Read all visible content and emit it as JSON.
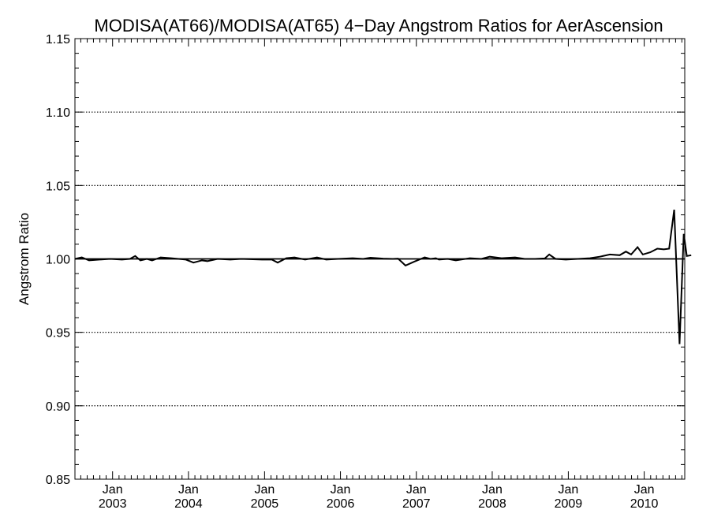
{
  "chart_data": {
    "type": "line",
    "title": "MODISA(AT66)/MODISA(AT65) 4−Day Angstrom Ratios for AerAscension",
    "ylabel": "Angstrom Ratio",
    "xlabel": "",
    "ylim": [
      0.85,
      1.15
    ],
    "xlim": [
      "2002-07-04",
      "2010-07-15"
    ],
    "y_ticks": [
      0.85,
      0.9,
      0.95,
      1.0,
      1.05,
      1.1,
      1.15
    ],
    "y_tick_labels": [
      "0.85",
      "0.90",
      "0.95",
      "1.00",
      "1.05",
      "1.10",
      "1.15"
    ],
    "x_ticks": [
      {
        "month": "Jan",
        "year": "2003",
        "date": "2003-01-01"
      },
      {
        "month": "Jan",
        "year": "2004",
        "date": "2004-01-01"
      },
      {
        "month": "Jan",
        "year": "2005",
        "date": "2005-01-01"
      },
      {
        "month": "Jan",
        "year": "2006",
        "date": "2006-01-01"
      },
      {
        "month": "Jan",
        "year": "2007",
        "date": "2007-01-01"
      },
      {
        "month": "Jan",
        "year": "2008",
        "date": "2008-01-01"
      },
      {
        "month": "Jan",
        "year": "2009",
        "date": "2009-01-01"
      },
      {
        "month": "Jan",
        "year": "2010",
        "date": "2010-01-01"
      }
    ],
    "grid": {
      "y": true,
      "x": false,
      "style": "dotted"
    },
    "reference_line": 1.0,
    "series": [
      {
        "points": [
          [
            "2002-07-04",
            1.0
          ],
          [
            "2002-08-06",
            1.001
          ],
          [
            "2002-09-10",
            0.999
          ],
          [
            "2002-10-30",
            0.9995
          ],
          [
            "2002-12-20",
            1.0
          ],
          [
            "2003-02-15",
            0.9995
          ],
          [
            "2003-03-25",
            1.0
          ],
          [
            "2003-04-20",
            1.002
          ],
          [
            "2003-05-15",
            0.999
          ],
          [
            "2003-06-15",
            1.0
          ],
          [
            "2003-07-10",
            0.999
          ],
          [
            "2003-08-20",
            1.001
          ],
          [
            "2003-10-10",
            1.0005
          ],
          [
            "2003-12-20",
            0.9995
          ],
          [
            "2004-01-25",
            0.9975
          ],
          [
            "2004-03-05",
            0.999
          ],
          [
            "2004-04-01",
            0.9985
          ],
          [
            "2004-05-20",
            1.0
          ],
          [
            "2004-07-20",
            0.9995
          ],
          [
            "2004-09-10",
            1.0
          ],
          [
            "2004-12-20",
            0.9995
          ],
          [
            "2005-02-05",
            0.9995
          ],
          [
            "2005-03-05",
            0.9975
          ],
          [
            "2005-04-15",
            1.0005
          ],
          [
            "2005-05-25",
            1.001
          ],
          [
            "2005-07-15",
            0.9995
          ],
          [
            "2005-09-10",
            1.001
          ],
          [
            "2005-10-25",
            0.9995
          ],
          [
            "2005-12-20",
            1.0
          ],
          [
            "2006-03-01",
            1.0005
          ],
          [
            "2006-04-20",
            1.0
          ],
          [
            "2006-05-25",
            1.0008
          ],
          [
            "2006-07-25",
            1.0002
          ],
          [
            "2006-09-10",
            1.0
          ],
          [
            "2006-10-05",
            1.0002
          ],
          [
            "2006-11-10",
            0.9955
          ],
          [
            "2006-12-20",
            0.998
          ],
          [
            "2007-02-10",
            1.001
          ],
          [
            "2007-03-10",
            1.0
          ],
          [
            "2007-04-05",
            1.0005
          ],
          [
            "2007-04-20",
            0.9995
          ],
          [
            "2007-06-01",
            1.0
          ],
          [
            "2007-07-10",
            0.999
          ],
          [
            "2007-09-15",
            1.0005
          ],
          [
            "2007-11-10",
            1.0
          ],
          [
            "2007-12-20",
            1.0015
          ],
          [
            "2008-02-15",
            1.0005
          ],
          [
            "2008-04-20",
            1.001
          ],
          [
            "2008-06-05",
            1.0
          ],
          [
            "2008-07-25",
            1.0
          ],
          [
            "2008-09-10",
            1.0003
          ],
          [
            "2008-10-01",
            1.003
          ],
          [
            "2008-11-01",
            1.0
          ],
          [
            "2008-12-20",
            0.9995
          ],
          [
            "2009-02-15",
            1.0
          ],
          [
            "2009-04-15",
            1.0005
          ],
          [
            "2009-06-01",
            1.0015
          ],
          [
            "2009-07-20",
            1.003
          ],
          [
            "2009-09-05",
            1.0025
          ],
          [
            "2009-10-05",
            1.005
          ],
          [
            "2009-10-30",
            1.003
          ],
          [
            "2009-11-30",
            1.008
          ],
          [
            "2009-12-25",
            1.003
          ],
          [
            "2010-01-30",
            1.0045
          ],
          [
            "2010-03-05",
            1.007
          ],
          [
            "2010-04-05",
            1.0065
          ],
          [
            "2010-05-01",
            1.007
          ],
          [
            "2010-05-25",
            1.0335
          ],
          [
            "2010-06-20",
            0.942
          ],
          [
            "2010-07-10",
            1.017
          ],
          [
            "2010-07-25",
            1.002
          ],
          [
            "2010-08-15",
            1.0025
          ]
        ]
      }
    ]
  }
}
